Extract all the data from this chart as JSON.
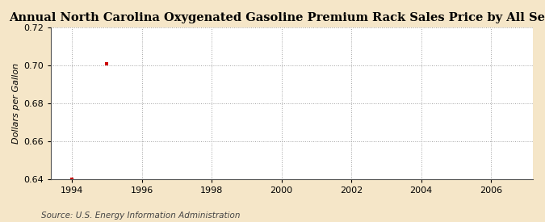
{
  "title": "Annual North Carolina Oxygenated Gasoline Premium Rack Sales Price by All Sellers",
  "ylabel": "Dollars per Gallon",
  "source": "Source: U.S. Energy Information Administration",
  "data_x": [
    1994,
    1995
  ],
  "data_y": [
    0.64,
    0.701
  ],
  "marker_color": "#cc0000",
  "fig_bg_color": "#f5e6c8",
  "plot_bg_color": "#ffffff",
  "xlim": [
    1993.4,
    2007.2
  ],
  "ylim": [
    0.64,
    0.72
  ],
  "xticks": [
    1994,
    1996,
    1998,
    2000,
    2002,
    2004,
    2006
  ],
  "yticks": [
    0.64,
    0.66,
    0.68,
    0.7,
    0.72
  ],
  "grid_color": "#999999",
  "title_fontsize": 10.5,
  "label_fontsize": 8,
  "tick_fontsize": 8,
  "source_fontsize": 7.5
}
